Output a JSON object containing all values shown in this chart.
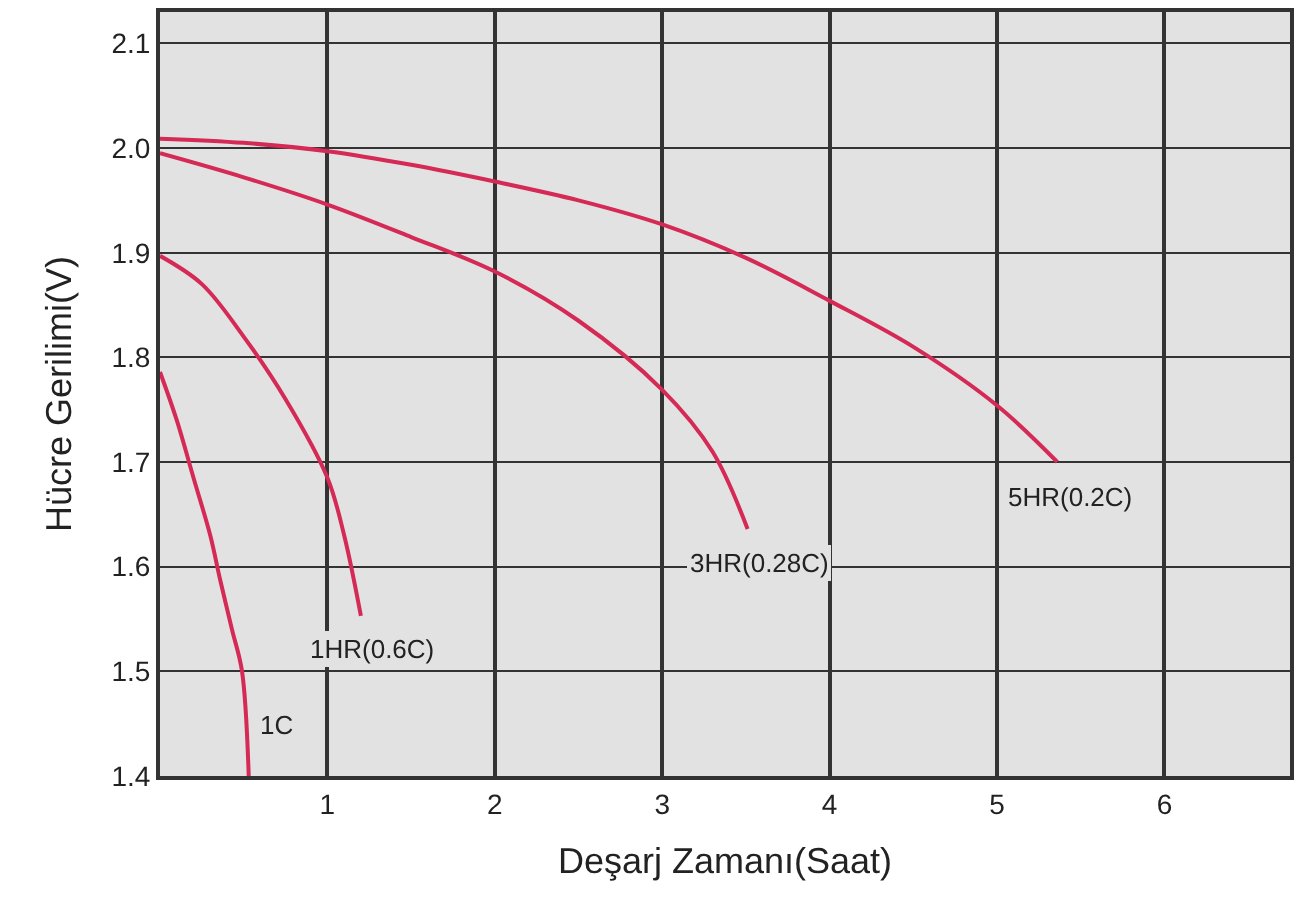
{
  "chart_data": {
    "type": "line",
    "xlabel": "Deşarj Zamanı(Saat)",
    "ylabel": "Hücre Gerilimi(V)",
    "xlim": [
      0,
      6.75
    ],
    "ylim": [
      1.4,
      2.13
    ],
    "xticks": [
      1,
      2,
      3,
      4,
      5,
      6
    ],
    "yticks": [
      1.4,
      1.5,
      1.6,
      1.7,
      1.8,
      1.9,
      {
        "value": 2,
        "label": "2.0"
      },
      2.1
    ],
    "grid": true,
    "legend": false,
    "series": [
      {
        "name": "1C",
        "color": "#d42a55",
        "x": [
          0,
          0.1,
          0.2,
          0.3,
          0.36,
          0.43,
          0.49,
          0.53
        ],
        "values": [
          1.786,
          1.74,
          1.685,
          1.63,
          1.587,
          1.54,
          1.5,
          1.4
        ]
      },
      {
        "name": "1HR(0.6C)",
        "color": "#d42a55",
        "x": [
          0,
          0.25,
          0.49,
          0.75,
          1.0,
          1.1,
          1.2
        ],
        "values": [
          1.897,
          1.87,
          1.822,
          1.76,
          1.685,
          1.63,
          1.553
        ]
      },
      {
        "name": "3HR(0.28C)",
        "color": "#d42a55",
        "x": [
          0,
          0.5,
          1.0,
          1.5,
          2.0,
          2.5,
          3.0,
          3.3,
          3.51
        ],
        "values": [
          1.995,
          1.972,
          1.946,
          1.915,
          1.882,
          1.835,
          1.769,
          1.71,
          1.636
        ]
      },
      {
        "name": "5HR(0.2C)",
        "color": "#d42a55",
        "x": [
          0,
          0.5,
          1.0,
          1.5,
          2.0,
          2.5,
          3.0,
          3.5,
          4.0,
          4.5,
          5.0,
          5.36
        ],
        "values": [
          2.009,
          2.005,
          1.997,
          1.984,
          1.968,
          1.95,
          1.927,
          1.895,
          1.854,
          1.81,
          1.754,
          1.7
        ]
      }
    ]
  }
}
